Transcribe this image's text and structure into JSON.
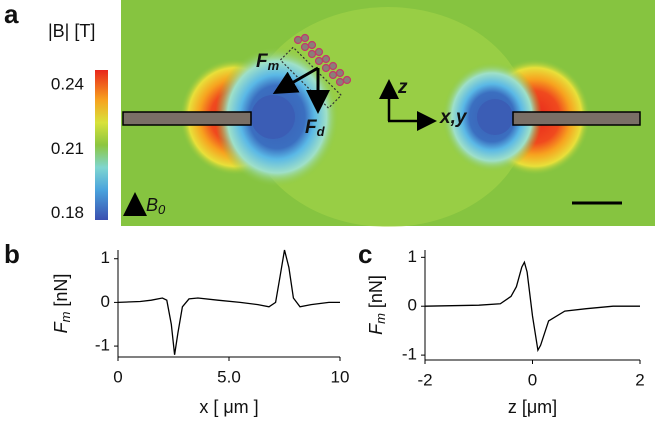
{
  "chart_data": [
    {
      "type": "field-map",
      "panel": "a",
      "colorbar_label": "|B| [T]",
      "ylim": [
        0.177,
        0.247
      ],
      "yticks": [
        0.18,
        0.21,
        0.24
      ],
      "annotations": {
        "force_magnetic": {
          "text": "F",
          "sub": "m"
        },
        "force_drag": {
          "text": "F",
          "sub": "d"
        },
        "axis_z": "z",
        "axis_xy": "x,y",
        "field": {
          "text": "B",
          "sub": "0"
        }
      }
    },
    {
      "type": "line",
      "panel": "b",
      "xlabel": "x [ μm ]",
      "ylabel": {
        "text": "F",
        "sub": "m",
        "rest": " [nN]"
      },
      "xlim": [
        0,
        10
      ],
      "xticks": [
        0,
        {
          "value": 5,
          "label": "5.0"
        },
        10
      ],
      "ylim": [
        -1.25,
        1.2
      ],
      "yticks": [
        -1,
        0,
        1
      ],
      "series": [
        {
          "color": "#000000",
          "x": [
            0,
            1,
            1.5,
            2,
            2.2,
            2.4,
            2.55,
            2.7,
            2.9,
            3.2,
            3.6,
            4.5,
            5.5,
            6.3,
            6.8,
            7.1,
            7.3,
            7.5,
            7.7,
            7.9,
            8.2,
            8.7,
            9.5,
            10
          ],
          "values": [
            0,
            0.02,
            0.05,
            0.1,
            0.05,
            -0.5,
            -1.2,
            -0.7,
            -0.1,
            0.08,
            0.1,
            0.05,
            0,
            -0.05,
            -0.1,
            0,
            0.6,
            1.2,
            0.8,
            0.1,
            -0.1,
            -0.05,
            0,
            0
          ]
        }
      ]
    },
    {
      "type": "line",
      "panel": "c",
      "xlabel": "z [μm]",
      "ylabel": {
        "text": "F",
        "sub": "m",
        "rest": " [nN]"
      },
      "xlim": [
        -2,
        2
      ],
      "xticks": [
        -2,
        0,
        2
      ],
      "ylim": [
        -1.1,
        1.15
      ],
      "yticks": [
        -1,
        0,
        1
      ],
      "series": [
        {
          "color": "#000000",
          "x": [
            -2,
            -1,
            -0.6,
            -0.4,
            -0.3,
            -0.2,
            -0.15,
            -0.1,
            0,
            0.1,
            0.15,
            0.3,
            0.6,
            1,
            1.5,
            2
          ],
          "values": [
            0,
            0.02,
            0.05,
            0.2,
            0.4,
            0.8,
            0.9,
            0.7,
            -0.2,
            -0.9,
            -0.8,
            -0.3,
            -0.1,
            -0.05,
            0,
            0
          ]
        }
      ]
    }
  ]
}
